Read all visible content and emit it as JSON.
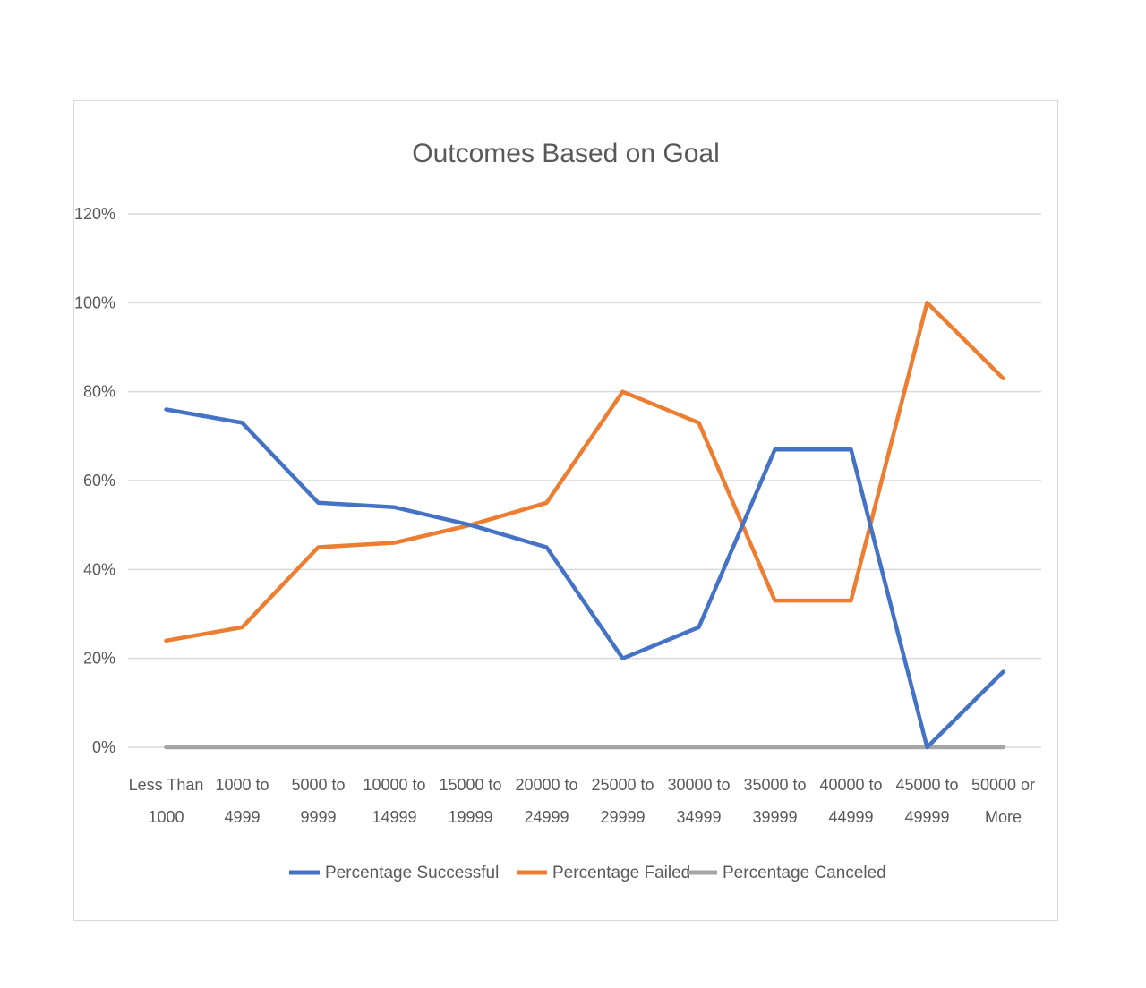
{
  "chart_data": {
    "type": "line",
    "title": "Outcomes Based on Goal",
    "xlabel": "",
    "ylabel": "",
    "categories": [
      [
        "Less Than",
        "1000"
      ],
      [
        "1000 to",
        "4999"
      ],
      [
        "5000 to",
        "9999"
      ],
      [
        "10000 to",
        "14999"
      ],
      [
        "15000 to",
        "19999"
      ],
      [
        "20000 to",
        "24999"
      ],
      [
        "25000 to",
        "29999"
      ],
      [
        "30000 to",
        "34999"
      ],
      [
        "35000 to",
        "39999"
      ],
      [
        "40000 to",
        "44999"
      ],
      [
        "45000 to",
        "49999"
      ],
      [
        "50000 or",
        "More"
      ]
    ],
    "y_ticks": [
      "0%",
      "20%",
      "40%",
      "60%",
      "80%",
      "100%",
      "120%"
    ],
    "ylim": [
      0,
      1.2
    ],
    "grid": true,
    "legend_position": "bottom",
    "series": [
      {
        "name": "Percentage Successful",
        "color": "#4472c4",
        "values": [
          0.76,
          0.73,
          0.55,
          0.54,
          0.5,
          0.45,
          0.2,
          0.27,
          0.67,
          0.67,
          0.0,
          0.17
        ]
      },
      {
        "name": "Percentage Failed",
        "color": "#ed7d31",
        "values": [
          0.24,
          0.27,
          0.45,
          0.46,
          0.5,
          0.55,
          0.8,
          0.73,
          0.33,
          0.33,
          1.0,
          0.83
        ]
      },
      {
        "name": "Percentage Canceled",
        "color": "#a5a5a5",
        "values": [
          0,
          0,
          0,
          0,
          0,
          0,
          0,
          0,
          0,
          0,
          0,
          0
        ]
      }
    ]
  }
}
